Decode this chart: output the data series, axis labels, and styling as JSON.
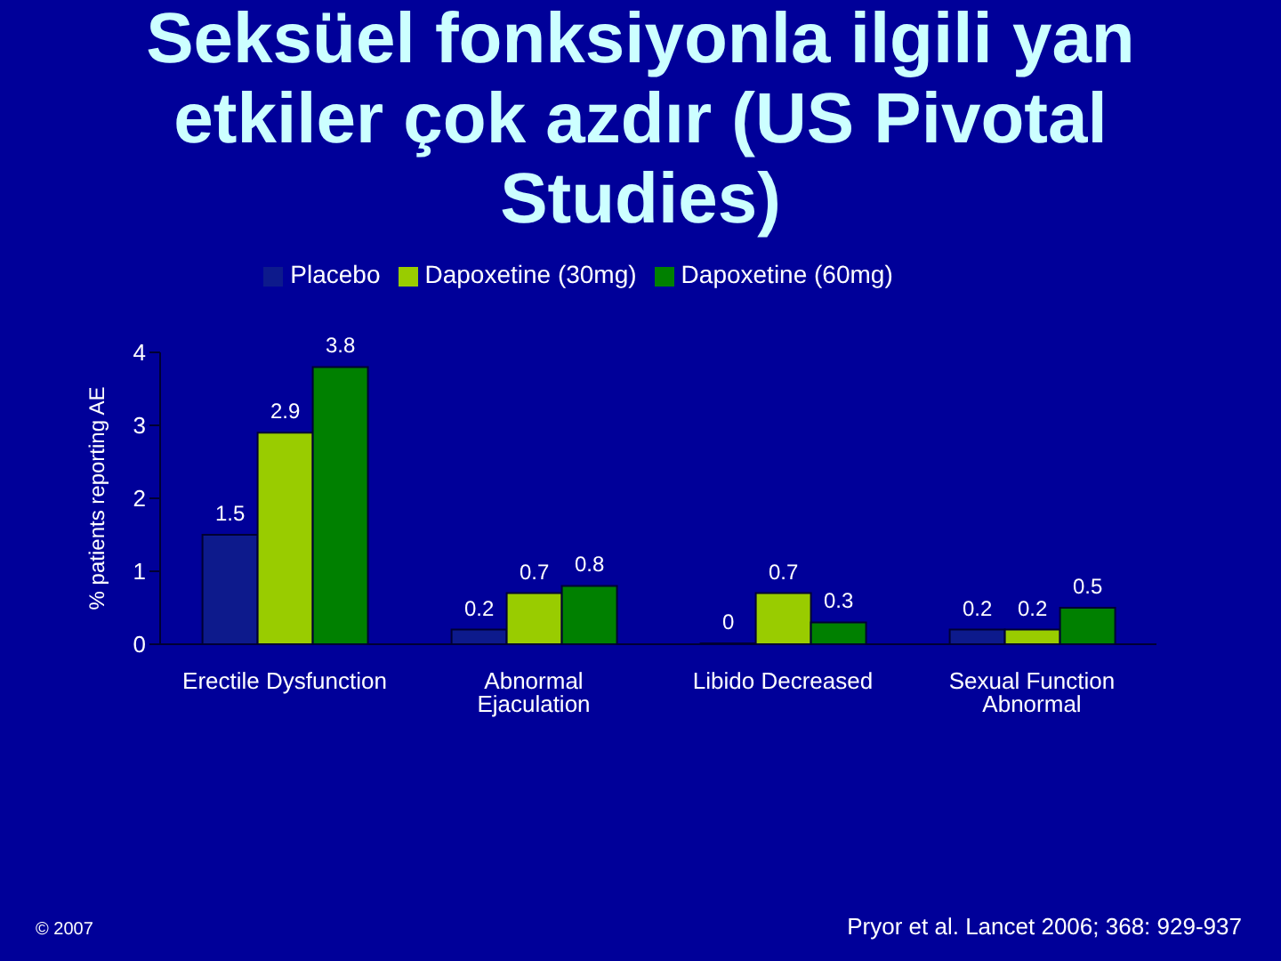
{
  "chart_data": {
    "type": "bar",
    "title": "Seksüel fonksiyonla ilgili yan etkiler çok azdır (US Pivotal Studies)",
    "ylabel": "% patients reporting AE",
    "categories": [
      "Erectile Dysfunction",
      "Abnormal Ejaculation",
      "Libido Decreased",
      "Sexual Function Abnormal"
    ],
    "series": [
      {
        "name": "Placebo",
        "color": "#0d1a8c",
        "values": [
          1.5,
          0.2,
          0,
          0.2
        ]
      },
      {
        "name": "Dapoxetine (30mg)",
        "color": "#99cc00",
        "values": [
          2.9,
          0.7,
          0.7,
          0.2
        ]
      },
      {
        "name": "Dapoxetine (60mg)",
        "color": "#008000",
        "values": [
          3.8,
          0.8,
          0.3,
          0.5
        ]
      }
    ],
    "ylim": [
      0,
      4
    ],
    "yticks": [
      0,
      1,
      2,
      3,
      4
    ],
    "data_labels": true,
    "legend": "top",
    "annotations": [
      "© 2007",
      "Pryor et al. Lancet 2006; 368: 929-937"
    ]
  }
}
